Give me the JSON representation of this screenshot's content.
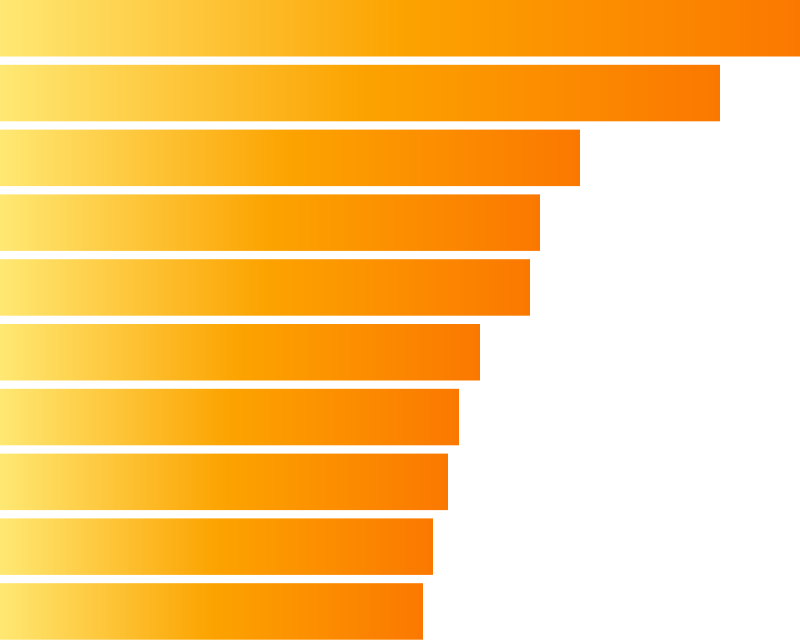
{
  "chart_data": {
    "type": "bar",
    "orientation": "horizontal",
    "values": [
      800,
      720,
      580,
      540,
      530,
      480,
      459,
      448,
      433,
      423
    ],
    "xlim": [
      0,
      800
    ],
    "gradient": [
      "#ffe873",
      "#fca300",
      "#fb7800"
    ]
  }
}
